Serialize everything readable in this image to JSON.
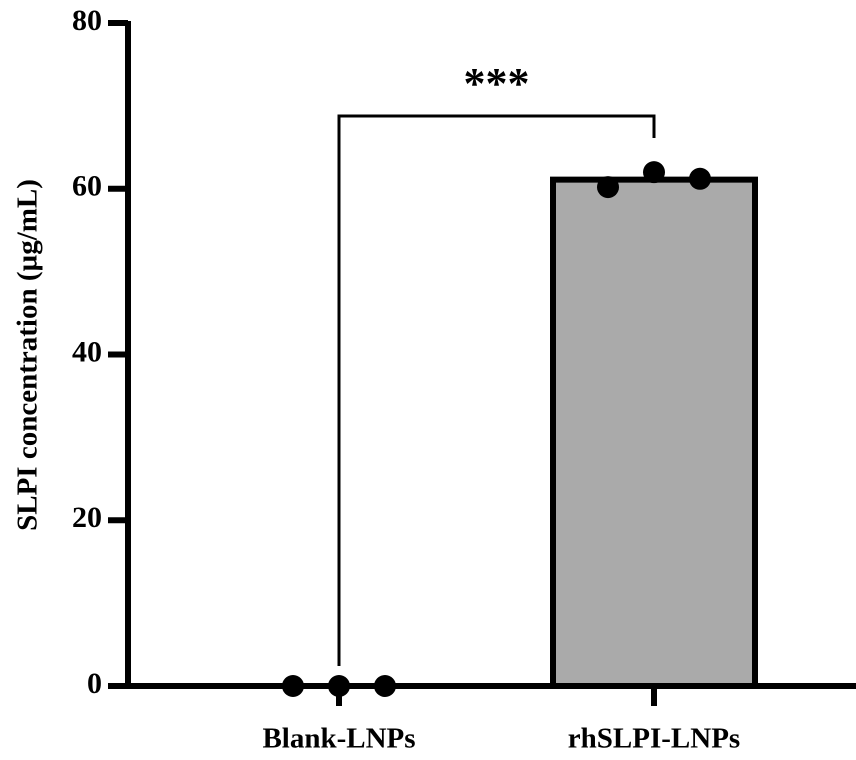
{
  "chart_data": {
    "type": "bar",
    "y_label": "SLPI concentration (µg/mL)",
    "categories": [
      "Blank-LNPs",
      "rhSLPI-LNPs"
    ],
    "values": [
      0,
      61.1
    ],
    "color": "#aaaaaa",
    "points": [
      [
        0,
        0,
        0
      ],
      [
        60.2,
        62,
        61.2
      ]
    ],
    "annotation": "***",
    "ylim": [
      0,
      80
    ],
    "yticks": [
      0,
      20,
      40,
      60,
      80
    ]
  }
}
